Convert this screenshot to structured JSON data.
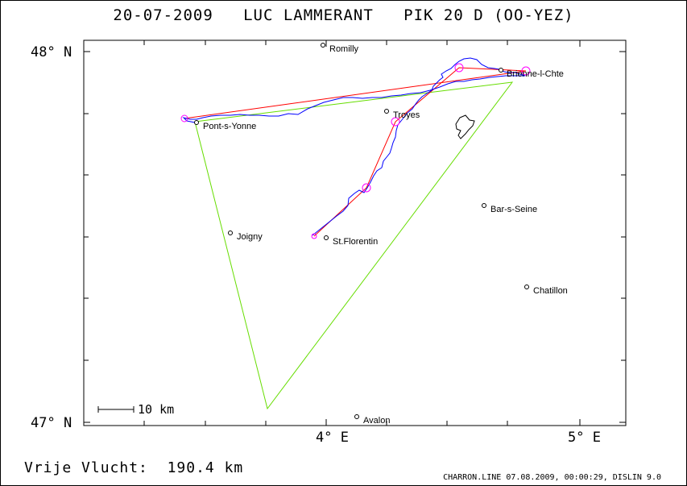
{
  "header": {
    "date": "20-07-2009",
    "pilot": "LUC LAMMERANT",
    "glider": "PIK 20 D (OO-YEZ)"
  },
  "axes": {
    "lat_top": "48° N",
    "lat_bottom": "47° N",
    "lon_left": "4° E",
    "lon_right": "5° E"
  },
  "scale_label": "10 km",
  "towns": [
    {
      "name": "Romilly"
    },
    {
      "name": "Brienne-l-Chte"
    },
    {
      "name": "Troyes"
    },
    {
      "name": "Pont-s-Yonne"
    },
    {
      "name": "Bar-s-Seine"
    },
    {
      "name": "Joigny"
    },
    {
      "name": "St.Florentin"
    },
    {
      "name": "Chatillon"
    },
    {
      "name": "Avalon"
    }
  ],
  "free_flight_label": "Vrije Vlucht:",
  "free_flight_value": "190.4 km",
  "footer": "CHARRON.LINE 07.08.2009, 00:00:29, DISLIN 9.0",
  "colors": {
    "track": "#0000ff",
    "task": "#ff0000",
    "triangle": "#66dd00",
    "turnpoint": "#ff00ff"
  }
}
